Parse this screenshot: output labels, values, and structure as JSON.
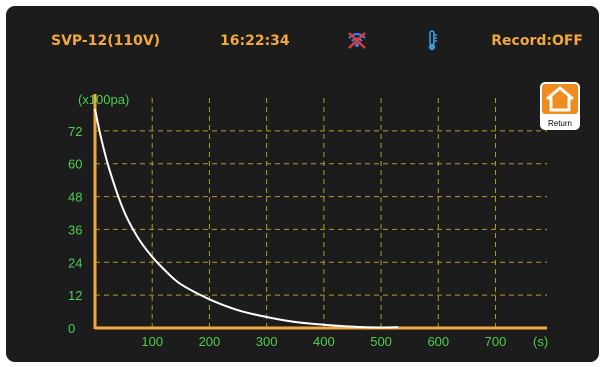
{
  "status_bar": {
    "model": "SVP-12(110V)",
    "time": "16:22:34",
    "record": "Record:OFF",
    "icons": [
      "network-disabled-icon",
      "thermometer-icon"
    ],
    "colors": {
      "text": "#f2a83a",
      "alert_icon": "#3a7fd8",
      "thermo_icon": "#3a9be0"
    }
  },
  "return_button": {
    "label": "Return",
    "icon": "home-icon",
    "color": "#f08b1d"
  },
  "chart_data": {
    "type": "line",
    "ylabel": "(x100pa)",
    "xlabel": "(s)",
    "yticks": [
      "72",
      "60",
      "48",
      "36",
      "24",
      "12",
      "0"
    ],
    "xticks": [
      "100",
      "200",
      "300",
      "400",
      "500",
      "600",
      "700"
    ],
    "xlim": [
      0,
      790
    ],
    "ylim": [
      0,
      84
    ],
    "grid": true,
    "colors": {
      "axis": "#f2a83a",
      "grid": "#b8952f",
      "tick": "#4ccf4c",
      "line": "#ffffff"
    },
    "series": [
      {
        "x": [
          0,
          10,
          25,
          50,
          75,
          100,
          125,
          150,
          200,
          250,
          300,
          350,
          400,
          450,
          500,
          530
        ],
        "values": [
          80,
          70,
          58,
          43,
          33,
          26,
          20.5,
          16,
          10.5,
          6.5,
          4,
          2.2,
          1.2,
          0.5,
          0.2,
          0.3
        ]
      }
    ]
  }
}
